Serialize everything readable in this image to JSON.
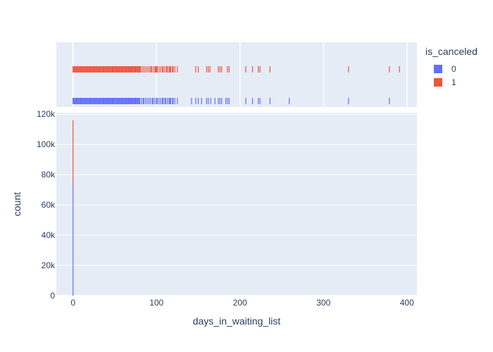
{
  "chart_data": {
    "type": "bar",
    "subtype": "histogram with marginal rug plot",
    "xlabel": "days_in_waiting_list",
    "ylabel": "count",
    "xlim": [
      -20,
      412
    ],
    "ylim": [
      0,
      121000
    ],
    "x_ticks": [
      0,
      100,
      200,
      300,
      400
    ],
    "y_ticks": [
      0,
      20000,
      40000,
      60000,
      80000,
      100000,
      120000
    ],
    "y_tick_labels": [
      "0",
      "20k",
      "40k",
      "60k",
      "80k",
      "100k",
      "120k"
    ],
    "legend": {
      "title": "is_canceled",
      "placement": "top-right outside"
    },
    "grid": true,
    "barmode": "stack",
    "series": [
      {
        "name": "0",
        "color": "#636efa",
        "histogram": [
          {
            "x": 0,
            "count": 74000
          }
        ],
        "rug_x": [
          0,
          1,
          2,
          3,
          4,
          5,
          6,
          7,
          8,
          9,
          10,
          11,
          12,
          13,
          14,
          15,
          16,
          17,
          18,
          19,
          20,
          21,
          22,
          23,
          24,
          25,
          26,
          27,
          28,
          29,
          30,
          31,
          32,
          33,
          34,
          35,
          36,
          37,
          38,
          39,
          40,
          41,
          42,
          43,
          44,
          45,
          46,
          47,
          48,
          49,
          50,
          51,
          52,
          53,
          54,
          55,
          56,
          57,
          58,
          59,
          60,
          61,
          62,
          63,
          64,
          65,
          66,
          67,
          68,
          69,
          70,
          71,
          72,
          73,
          74,
          75,
          76,
          77,
          78,
          79,
          80,
          82,
          84,
          85,
          87,
          89,
          91,
          93,
          95,
          96,
          98,
          100,
          101,
          103,
          105,
          107,
          108,
          110,
          111,
          113,
          115,
          116,
          117,
          119,
          120,
          122,
          125,
          142,
          147,
          150,
          154,
          160,
          162,
          165,
          170,
          174,
          176,
          178,
          183,
          185,
          187,
          207,
          215,
          222,
          224,
          236,
          259,
          330,
          379
        ]
      },
      {
        "name": "1",
        "color": "#ef553b",
        "histogram": [
          {
            "x": 0,
            "count": 42000
          }
        ],
        "rug_x": [
          0,
          1,
          2,
          3,
          4,
          5,
          6,
          7,
          8,
          9,
          10,
          11,
          12,
          13,
          14,
          15,
          16,
          17,
          18,
          19,
          20,
          21,
          22,
          23,
          24,
          25,
          26,
          27,
          28,
          29,
          30,
          31,
          32,
          33,
          34,
          35,
          36,
          37,
          38,
          39,
          40,
          41,
          42,
          43,
          44,
          45,
          46,
          47,
          48,
          49,
          50,
          51,
          52,
          53,
          54,
          55,
          56,
          57,
          58,
          59,
          60,
          61,
          62,
          63,
          64,
          65,
          66,
          67,
          68,
          69,
          70,
          71,
          72,
          73,
          74,
          75,
          76,
          77,
          78,
          79,
          80,
          81,
          83,
          85,
          87,
          89,
          91,
          93,
          94,
          96,
          98,
          99,
          100,
          101,
          103,
          105,
          107,
          108,
          110,
          112,
          113,
          115,
          116,
          117,
          119,
          120,
          122,
          125,
          147,
          150,
          160,
          162,
          164,
          174,
          176,
          178,
          185,
          187,
          207,
          215,
          222,
          224,
          236,
          330,
          379,
          391
        ]
      }
    ]
  }
}
